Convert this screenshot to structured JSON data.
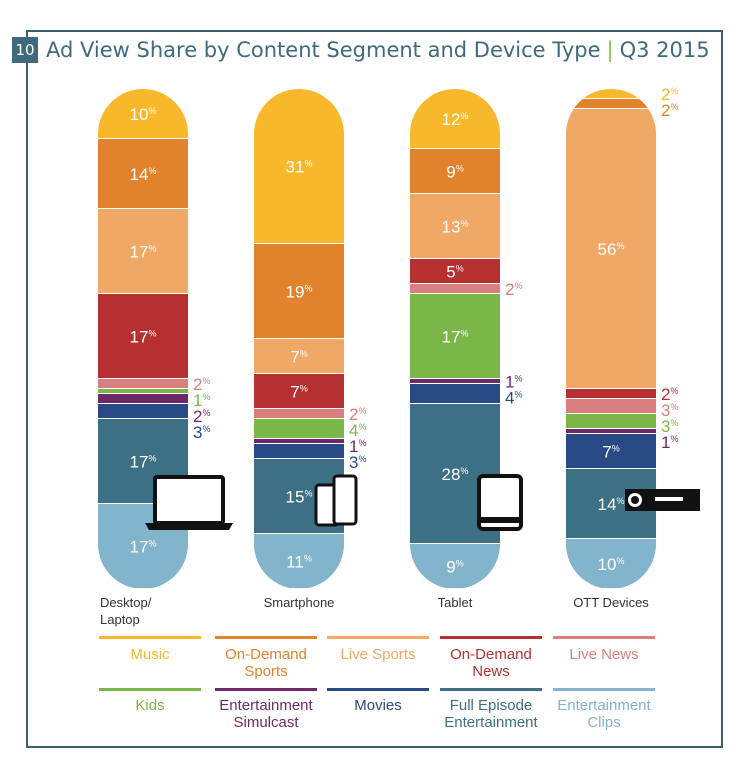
{
  "header": {
    "number": "10",
    "title": "Ad View Share by Content Segment and Device Type",
    "period": "Q3 2015"
  },
  "chart_data": {
    "type": "bar",
    "stacked": true,
    "unit": "%",
    "categories": [
      "Desktop/ Laptop",
      "Smartphone",
      "Tablet",
      "OTT Devices"
    ],
    "series": [
      {
        "name": "Music",
        "color": "#f7b92b",
        "values": [
          10,
          31,
          12,
          2
        ]
      },
      {
        "name": "On-Demand Sports",
        "color": "#e1832c",
        "values": [
          14,
          19,
          9,
          2
        ]
      },
      {
        "name": "Live Sports",
        "color": "#efa866",
        "values": [
          17,
          7,
          13,
          56
        ]
      },
      {
        "name": "On-Demand News",
        "color": "#b62f31",
        "values": [
          17,
          7,
          5,
          2
        ]
      },
      {
        "name": "Live News",
        "color": "#d97f80",
        "values": [
          2,
          2,
          2,
          3
        ]
      },
      {
        "name": "Kids",
        "color": "#7ab648",
        "values": [
          1,
          4,
          17,
          3
        ]
      },
      {
        "name": "Entertainment Simulcast",
        "color": "#6e2a68",
        "values": [
          2,
          1,
          1,
          1
        ]
      },
      {
        "name": "Movies",
        "color": "#284b86",
        "values": [
          3,
          3,
          4,
          7
        ]
      },
      {
        "name": "Full Episode Entertainment",
        "color": "#3d7085",
        "values": [
          17,
          15,
          28,
          14
        ]
      },
      {
        "name": "Entertainment Clips",
        "color": "#82b4cc",
        "values": [
          17,
          11,
          9,
          10
        ]
      }
    ],
    "legend_position": "bottom",
    "grid": false
  },
  "device_icons": [
    "laptop-icon",
    "smartphone-icon",
    "tablet-icon",
    "ott-device-icon"
  ],
  "legend": [
    {
      "label": "Music",
      "color": "#f7b92b"
    },
    {
      "label": "On-Demand Sports",
      "color": "#e1832c"
    },
    {
      "label": "Live Sports",
      "color": "#efa866"
    },
    {
      "label": "On-Demand News",
      "color": "#b62f31"
    },
    {
      "label": "Live News",
      "color": "#d97f80"
    },
    {
      "label": "Kids",
      "color": "#7ab648"
    },
    {
      "label": "Entertainment Simulcast",
      "color": "#6e2a68"
    },
    {
      "label": "Movies",
      "color": "#284b86"
    },
    {
      "label": "Full Episode Entertainment",
      "color": "#3d7085"
    },
    {
      "label": "Entertainment Clips",
      "color": "#82b4cc"
    }
  ]
}
